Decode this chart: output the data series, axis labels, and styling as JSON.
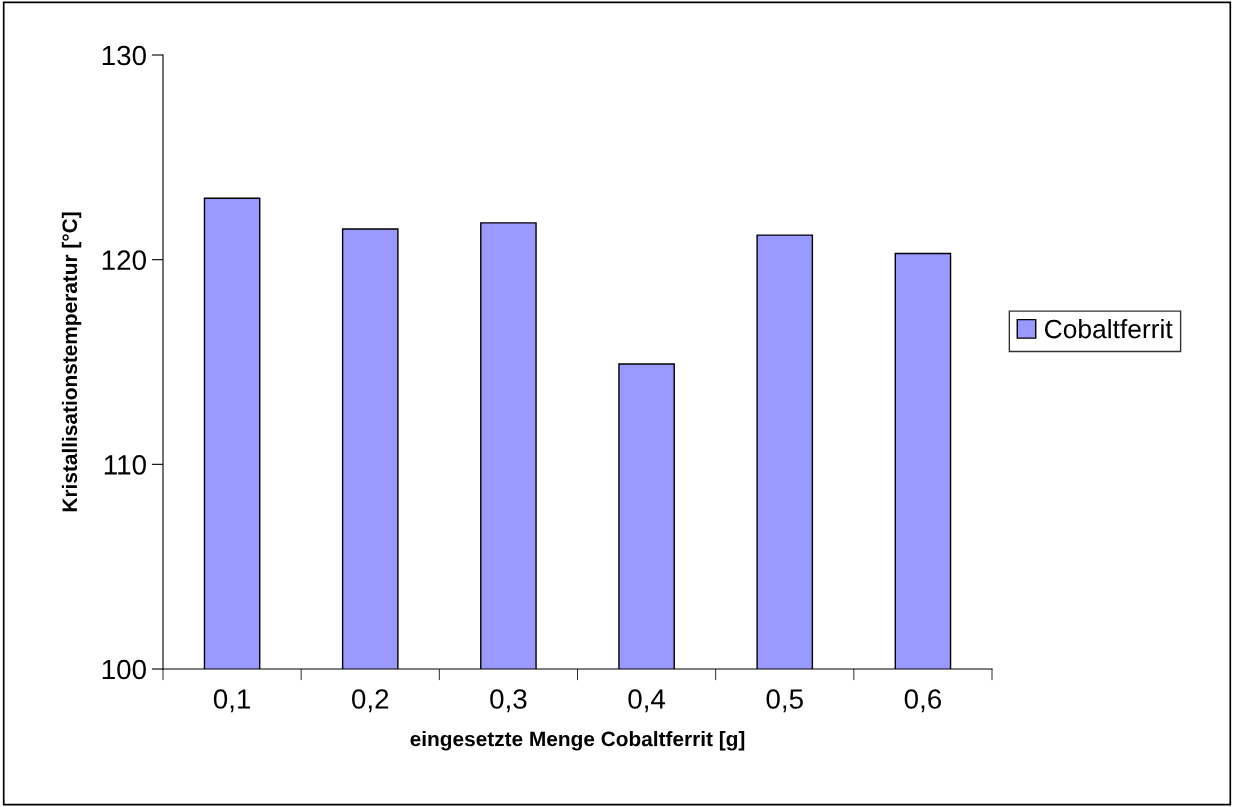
{
  "chart_data": {
    "type": "bar",
    "xlabel": "eingesetzte Menge Cobaltferrit [g]",
    "ylabel": "Kristallisationstemperatur [°C]",
    "categories": [
      "0,1",
      "0,2",
      "0,3",
      "0,4",
      "0,5",
      "0,6"
    ],
    "series": [
      {
        "name": "Cobaltferrit",
        "color": "#9999ff",
        "values": [
          123.0,
          121.5,
          121.8,
          114.9,
          121.2,
          120.3
        ]
      }
    ],
    "ylim": [
      100,
      130
    ],
    "yticks": [
      100,
      110,
      120,
      130
    ],
    "grid": false,
    "legend": "right"
  }
}
